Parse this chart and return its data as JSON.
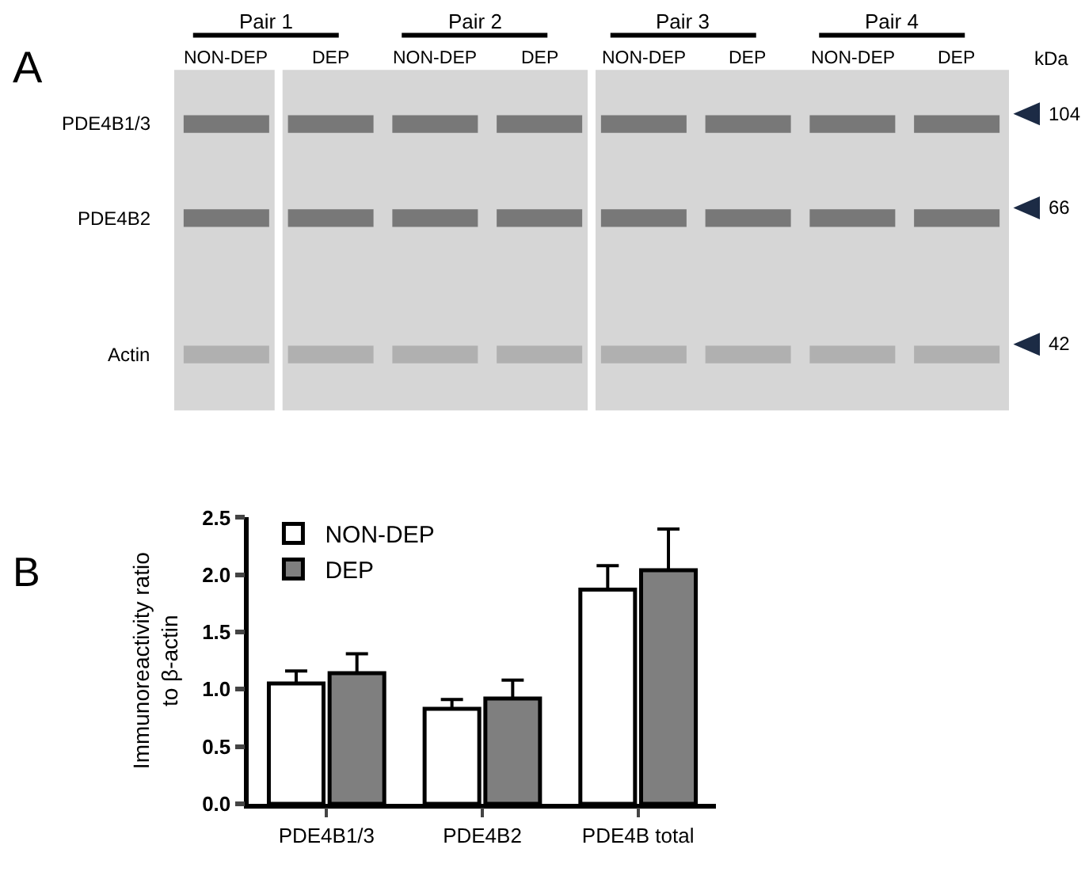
{
  "chart_data": [
    {
      "type": "other",
      "title": "A",
      "categories": [
        "Pair 1",
        "Pair 2",
        "Pair 3",
        "Pair 4"
      ],
      "annotations": [
        "NON-DEP",
        "DEP",
        "NON-DEP",
        "DEP",
        "NON-DEP",
        "DEP",
        "NON-DEP",
        "DEP"
      ],
      "y_categories": [
        "PDE4B1/3",
        "PDE4B2",
        "Actin"
      ],
      "y2_categories": [
        "104",
        "66",
        "42"
      ],
      "y2label": "kDa"
    },
    {
      "type": "bar",
      "title": "B",
      "ylabel": "Immunoreactivity ratio\nto β-actin",
      "categories": [
        "PDE4B1/3",
        "PDE4B2",
        "PDE4B total"
      ],
      "series": [
        {
          "name": "NON-DEP",
          "color": "#ffffff",
          "values": [
            1.05,
            0.83,
            1.87
          ],
          "errors": [
            [
              1.05,
              1.16
            ],
            [
              0.83,
              0.91
            ],
            [
              1.87,
              2.08
            ]
          ]
        },
        {
          "name": "DEP",
          "color": "#7f7f7f",
          "values": [
            1.14,
            0.92,
            2.04
          ],
          "errors": [
            [
              1.14,
              1.31
            ],
            [
              0.92,
              1.08
            ],
            [
              2.04,
              2.4
            ]
          ]
        }
      ],
      "ylim": [
        0,
        2.5
      ],
      "yticks": [
        {
          "value": 0,
          "label": "0.0"
        },
        {
          "value": 0.5,
          "label": "0.5"
        },
        {
          "value": 1,
          "label": "1.0"
        },
        {
          "value": 1.5,
          "label": "1.5"
        },
        {
          "value": 2,
          "label": "2.0"
        },
        {
          "value": 2.5,
          "label": "2.5"
        }
      ],
      "legend": "top left"
    }
  ]
}
